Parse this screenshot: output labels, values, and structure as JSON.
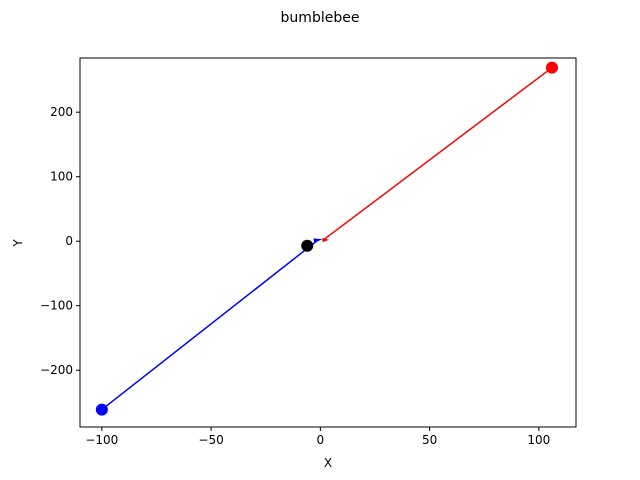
{
  "chart_data": {
    "type": "line",
    "title": "bumblebee",
    "xlabel": "X",
    "ylabel": "Y",
    "xlim": [
      -110,
      117
    ],
    "ylim": [
      -288,
      284
    ],
    "xticks": [
      -100,
      -50,
      0,
      50,
      100
    ],
    "yticks": [
      -200,
      -100,
      0,
      100,
      200
    ],
    "xtick_labels": [
      "−100",
      "−50",
      "0",
      "50",
      "100"
    ],
    "ytick_labels": [
      "−200",
      "−100",
      "0",
      "100",
      "200"
    ],
    "grid": false,
    "series": [
      {
        "color": "#0000ff",
        "points": [
          [
            -100,
            -261
          ],
          [
            -1,
            2
          ]
        ],
        "start_marker": [
          -100,
          -261
        ]
      },
      {
        "color": "#ff0000",
        "points": [
          [
            106,
            269
          ],
          [
            1,
            1
          ]
        ],
        "start_marker": [
          106,
          269
        ]
      }
    ],
    "arrows": [
      {
        "color": "#0000ff",
        "from": [
          -3,
          1
        ],
        "to": [
          1,
          3
        ]
      },
      {
        "color": "#ff0000",
        "from": [
          1,
          2
        ],
        "to": [
          4,
          2
        ]
      }
    ],
    "center_marker": {
      "color": "#000000",
      "point": [
        -6,
        -7
      ]
    }
  }
}
